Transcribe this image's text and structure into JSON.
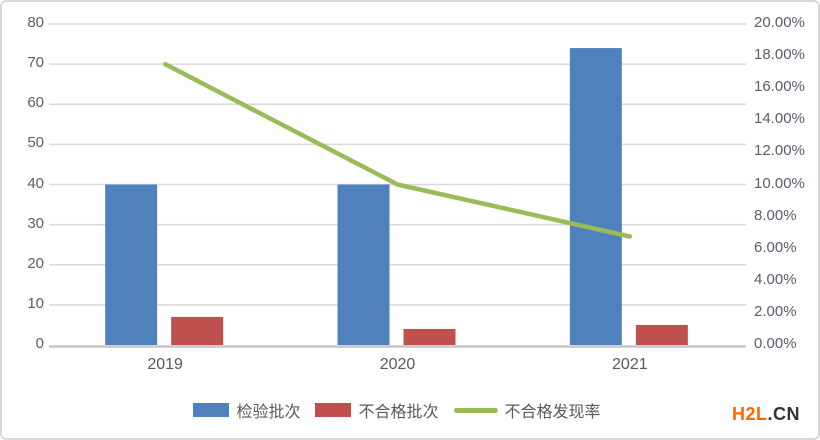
{
  "chart_data": {
    "type": "bar",
    "subtype": "clustered-bars-with-line-overlay",
    "categories": [
      "2019",
      "2020",
      "2021"
    ],
    "series": [
      {
        "name": "检验批次",
        "type": "bar",
        "color": "#4F81BD",
        "axis": "left",
        "values": [
          40,
          40,
          74
        ]
      },
      {
        "name": "不合格批次",
        "type": "bar",
        "color": "#C0504D",
        "axis": "left",
        "values": [
          7,
          4,
          5
        ]
      },
      {
        "name": "不合格发现率",
        "type": "line",
        "color": "#9BBB59",
        "axis": "right",
        "unit": "%",
        "values": [
          17.5,
          10.0,
          6.76
        ]
      }
    ],
    "left_axis": {
      "min": 0,
      "max": 80,
      "step": 10,
      "ticks": [
        "0",
        "10",
        "20",
        "30",
        "40",
        "50",
        "60",
        "70",
        "80"
      ]
    },
    "right_axis": {
      "min": 0,
      "max": 20,
      "step": 2,
      "ticks": [
        "0.00%",
        "2.00%",
        "4.00%",
        "6.00%",
        "8.00%",
        "10.00%",
        "12.00%",
        "14.00%",
        "16.00%",
        "18.00%",
        "20.00%"
      ]
    },
    "grid": true,
    "legend_position": "bottom"
  },
  "colors": {
    "gridline": "#DADADA",
    "axis_line": "#C6C6C6",
    "tick_text": "#565f6b",
    "background": "#FFFFFF",
    "border": "#D9D9D9"
  },
  "watermark": {
    "brand": "H2L",
    "suffix": ".CN",
    "brand_color": "#FF6600",
    "suffix_color": "#333333"
  }
}
